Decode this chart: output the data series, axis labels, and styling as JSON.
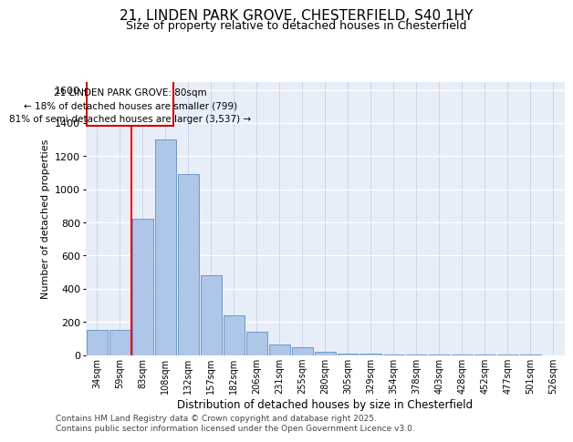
{
  "title_line1": "21, LINDEN PARK GROVE, CHESTERFIELD, S40 1HY",
  "title_line2": "Size of property relative to detached houses in Chesterfield",
  "xlabel": "Distribution of detached houses by size in Chesterfield",
  "ylabel": "Number of detached properties",
  "categories": [
    "34sqm",
    "59sqm",
    "83sqm",
    "108sqm",
    "132sqm",
    "157sqm",
    "182sqm",
    "206sqm",
    "231sqm",
    "255sqm",
    "280sqm",
    "305sqm",
    "329sqm",
    "354sqm",
    "378sqm",
    "403sqm",
    "428sqm",
    "452sqm",
    "477sqm",
    "501sqm",
    "526sqm"
  ],
  "values": [
    150,
    150,
    820,
    1300,
    1090,
    480,
    240,
    140,
    65,
    45,
    20,
    10,
    8,
    5,
    3,
    2,
    2,
    1,
    1,
    1,
    0
  ],
  "bar_color": "#aec6e8",
  "bar_edge_color": "#6090c0",
  "background_color": "#e8eef8",
  "grid_color": "#d0d8e8",
  "red_line_x": 1.5,
  "annotation_title": "21 LINDEN PARK GROVE: 80sqm",
  "annotation_line2": "← 18% of detached houses are smaller (799)",
  "annotation_line3": "81% of semi-detached houses are larger (3,537) →",
  "annotation_box_color": "#ffffff",
  "annotation_box_edge": "#cc0000",
  "footer_line1": "Contains HM Land Registry data © Crown copyright and database right 2025.",
  "footer_line2": "Contains public sector information licensed under the Open Government Licence v3.0.",
  "ylim": [
    0,
    1650
  ],
  "yticks": [
    0,
    200,
    400,
    600,
    800,
    1000,
    1200,
    1400,
    1600
  ]
}
